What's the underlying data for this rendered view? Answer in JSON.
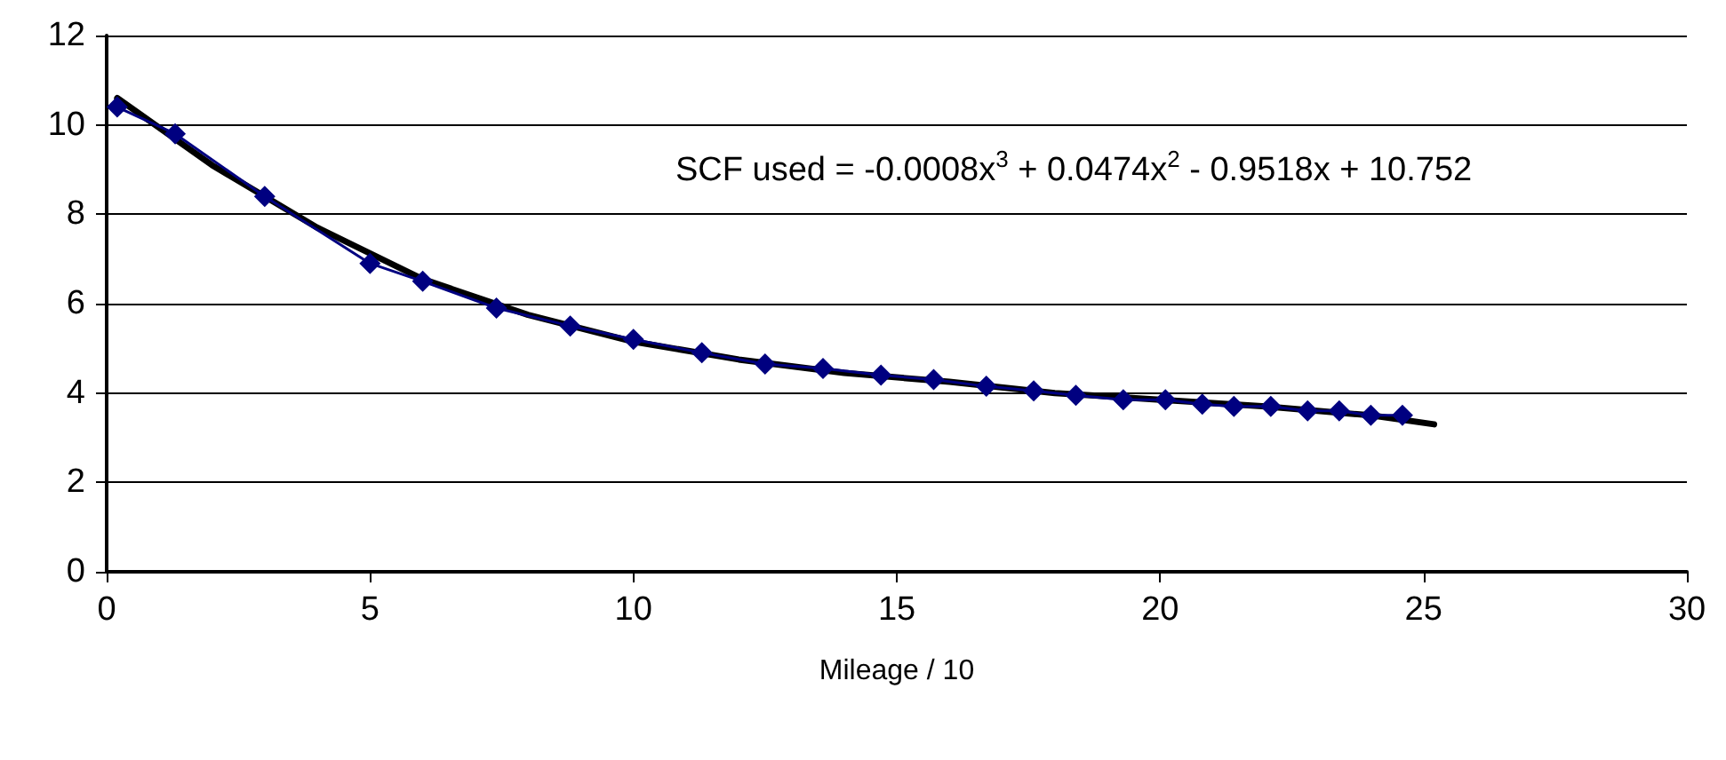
{
  "chart_data": {
    "type": "line",
    "xlabel": "Mileage / 10",
    "xlim": [
      0,
      30
    ],
    "xticks": [
      0,
      5,
      10,
      15,
      20,
      25,
      30
    ],
    "ylim": [
      0,
      12
    ],
    "yticks": [
      0,
      2,
      4,
      6,
      8,
      10,
      12
    ],
    "grid": "y",
    "annotations": [
      "SCF used = -0.0008x$^{3}$ + 0.0474x$^{2}$ - 0.9518x + 10.752"
    ],
    "series": [
      {
        "color": "#000080",
        "marker": "diamond",
        "x": [
          0.2,
          1.3,
          3,
          5,
          6,
          7.4,
          8.8,
          10,
          11.3,
          12.5,
          13.6,
          14.7,
          15.7,
          16.7,
          17.6,
          18.4,
          19.3,
          20.1,
          20.8,
          21.4,
          22.1,
          22.8,
          23.4,
          24,
          24.6
        ],
        "values": [
          10.4,
          9.8,
          8.4,
          6.9,
          6.5,
          5.9,
          5.5,
          5.2,
          4.9,
          4.65,
          4.55,
          4.4,
          4.3,
          4.15,
          4.05,
          3.95,
          3.85,
          3.85,
          3.75,
          3.7,
          3.7,
          3.6,
          3.6,
          3.5,
          3.5
        ]
      },
      {
        "color": "#000000",
        "marker": "none",
        "x": [
          0.2,
          2,
          4,
          6,
          8,
          10,
          12,
          14,
          16,
          18,
          20,
          22,
          24,
          25.2
        ],
        "values": [
          10.6,
          9.1,
          7.7,
          6.55,
          5.75,
          5.15,
          4.75,
          4.45,
          4.25,
          4.0,
          3.85,
          3.7,
          3.5,
          3.3
        ]
      }
    ]
  }
}
